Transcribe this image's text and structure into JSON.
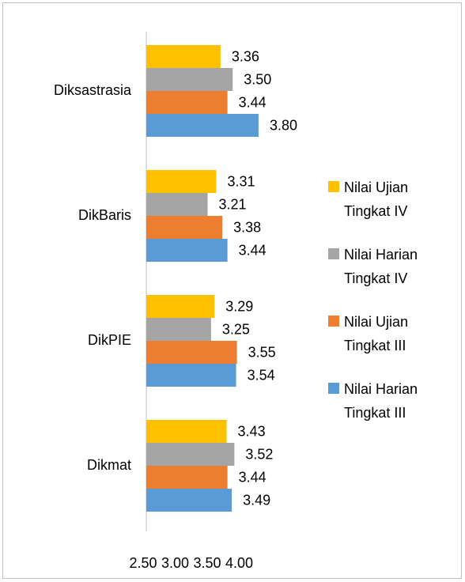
{
  "chart_data": {
    "type": "bar",
    "orientation": "horizontal",
    "categories": [
      "Diksastrasia",
      "DikBaris",
      "DikPIE",
      "Dikmat"
    ],
    "series": [
      {
        "name": "Nilai Ujian Tingkat IV",
        "color": "#ffc000",
        "values": [
          3.36,
          3.31,
          3.29,
          3.43
        ],
        "value_labels": [
          "3.36",
          "3.31",
          "3.29",
          "3.43"
        ]
      },
      {
        "name": "Nilai Harian Tingkat IV",
        "color": "#a5a5a5",
        "values": [
          3.5,
          3.21,
          3.25,
          3.52
        ],
        "value_labels": [
          "3.50",
          "3.21",
          "3.25",
          "3.52"
        ]
      },
      {
        "name": "Nilai Ujian Tingkat III",
        "color": "#ed7d31",
        "values": [
          3.44,
          3.38,
          3.55,
          3.44
        ],
        "value_labels": [
          "3.44",
          "3.38",
          "3.55",
          "3.44"
        ]
      },
      {
        "name": "Nilai Harian Tingkat III",
        "color": "#5b9bd5",
        "values": [
          3.8,
          3.44,
          3.54,
          3.49
        ],
        "value_labels": [
          "3.80",
          "3.44",
          "3.54",
          "3.49"
        ]
      }
    ],
    "xlim": [
      2.5,
      4.0
    ],
    "xticks": [
      {
        "value": 2.5,
        "label": "2.50"
      },
      {
        "value": 3.0,
        "label": "3.00"
      },
      {
        "value": 3.5,
        "label": "3.50"
      },
      {
        "value": 4.0,
        "label": "4.00"
      }
    ],
    "legend": "right"
  }
}
